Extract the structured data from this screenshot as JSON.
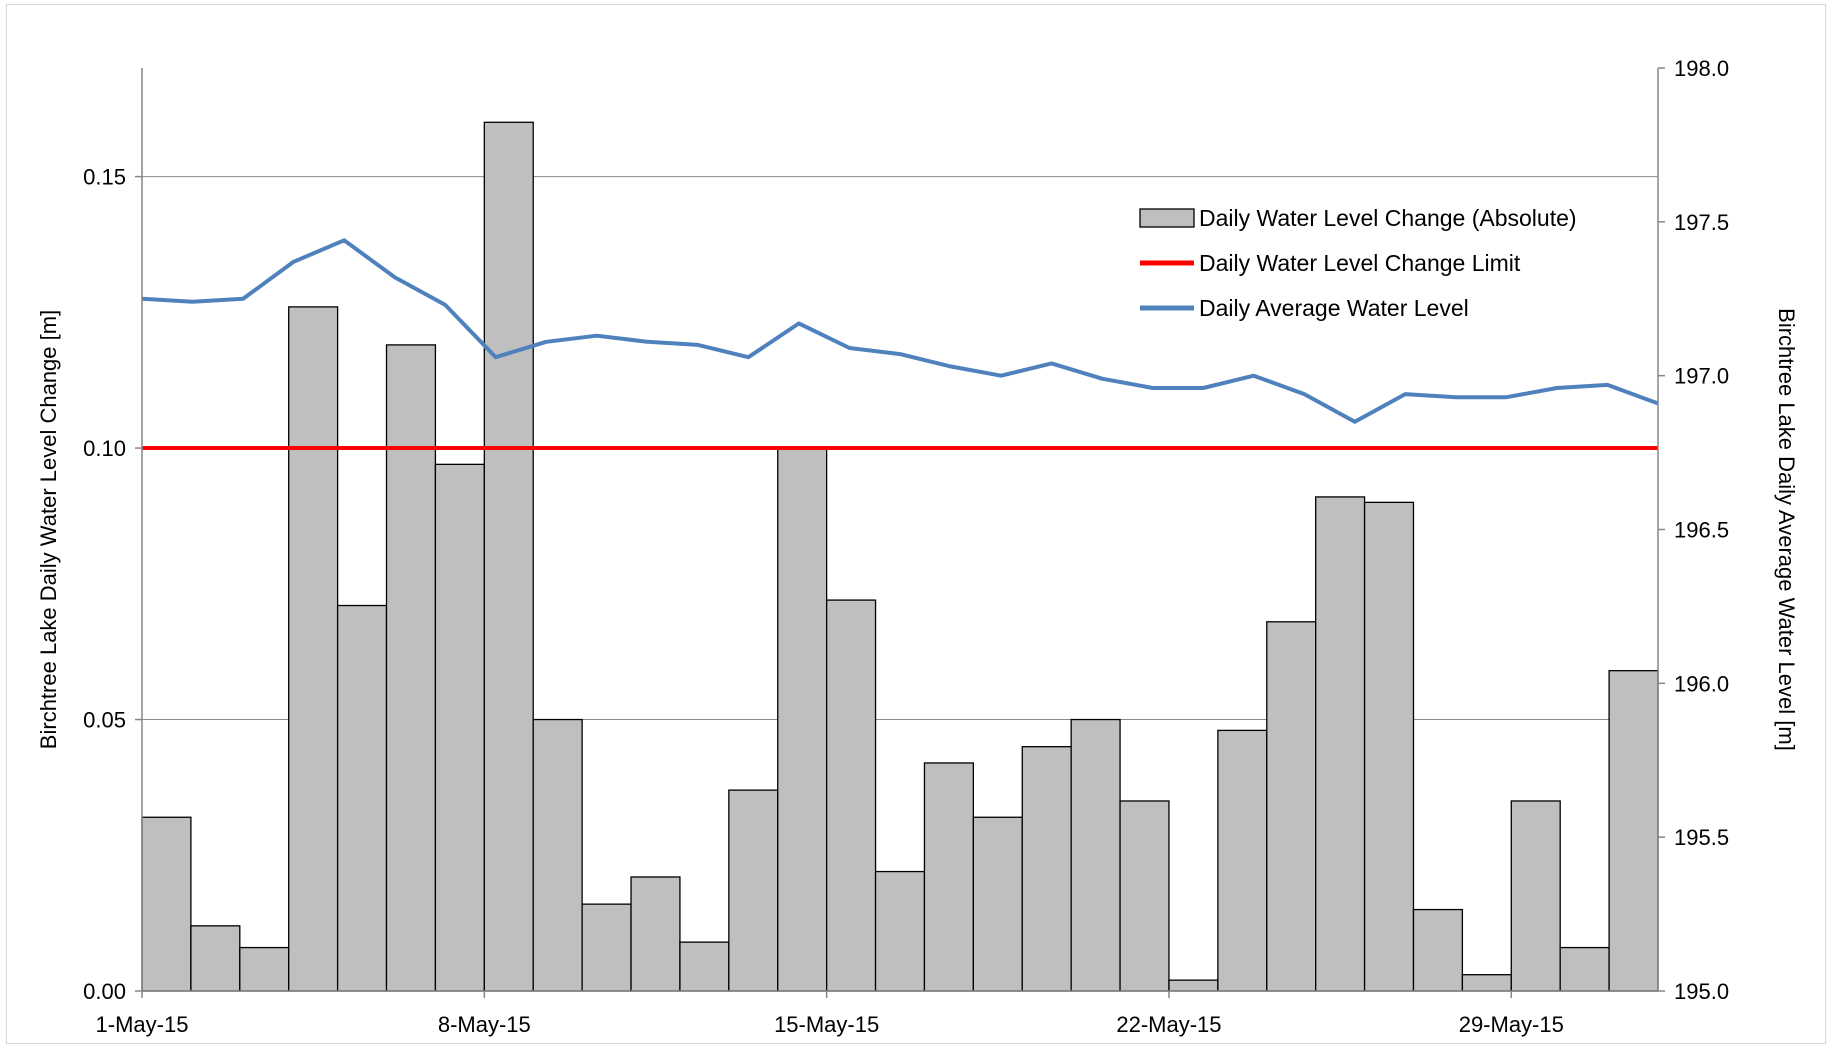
{
  "chart_data": {
    "type": "bar+line",
    "x_axis": {
      "tick_labels": [
        "1-May-15",
        "8-May-15",
        "15-May-15",
        "22-May-15",
        "29-May-15"
      ],
      "tick_day_index": [
        0,
        7,
        14,
        21,
        28
      ]
    },
    "dates": [
      "1-May-15",
      "2-May-15",
      "3-May-15",
      "4-May-15",
      "5-May-15",
      "6-May-15",
      "7-May-15",
      "8-May-15",
      "9-May-15",
      "10-May-15",
      "11-May-15",
      "12-May-15",
      "13-May-15",
      "14-May-15",
      "15-May-15",
      "16-May-15",
      "17-May-15",
      "18-May-15",
      "19-May-15",
      "20-May-15",
      "21-May-15",
      "22-May-15",
      "23-May-15",
      "24-May-15",
      "25-May-15",
      "26-May-15",
      "27-May-15",
      "28-May-15",
      "29-May-15",
      "30-May-15",
      "31-May-15"
    ],
    "y_left": {
      "label": "Birchtree Lake Daily Water Level Change [m]",
      "ylim": [
        0,
        0.17
      ],
      "ticks": [
        "0.00",
        "0.05",
        "0.10",
        "0.15"
      ],
      "tick_values": [
        0,
        0.05,
        0.1,
        0.15
      ]
    },
    "y_right": {
      "label": "Birchtree Lake Daily Average Water Level [m]",
      "ylim": [
        195.0,
        198.0
      ],
      "ticks": [
        "195.0",
        "195.5",
        "196.0",
        "196.5",
        "197.0",
        "197.5",
        "198.0"
      ],
      "tick_values": [
        195.0,
        195.5,
        196.0,
        196.5,
        197.0,
        197.5,
        198.0
      ]
    },
    "gridlines": "horizontal",
    "series": [
      {
        "name": "Daily Water Level Change (Absolute)",
        "type": "bar",
        "axis": "left",
        "color": "#bfbfbf",
        "values": [
          0.032,
          0.012,
          0.008,
          0.126,
          0.071,
          0.119,
          0.097,
          0.16,
          0.05,
          0.016,
          0.021,
          0.009,
          0.037,
          0.1,
          0.072,
          0.022,
          0.042,
          0.032,
          0.045,
          0.05,
          0.035,
          0.002,
          0.048,
          0.068,
          0.091,
          0.09,
          0.015,
          0.003,
          0.035,
          0.008,
          0.059
        ]
      },
      {
        "name": "Daily Water Level Change Limit",
        "type": "line",
        "axis": "left",
        "color": "#ff0000",
        "value": 0.1
      },
      {
        "name": "Daily Average Water Level",
        "type": "line",
        "axis": "right",
        "color": "#4f81bd",
        "values": [
          197.25,
          197.24,
          197.25,
          197.37,
          197.44,
          197.32,
          197.23,
          197.06,
          197.11,
          197.13,
          197.11,
          197.1,
          197.06,
          197.17,
          197.09,
          197.07,
          197.03,
          197.0,
          197.04,
          196.99,
          196.96,
          196.96,
          197.0,
          196.94,
          196.85,
          196.94,
          196.93,
          196.93,
          196.96,
          196.97,
          196.91
        ]
      }
    ],
    "legend_position": "top-right"
  }
}
